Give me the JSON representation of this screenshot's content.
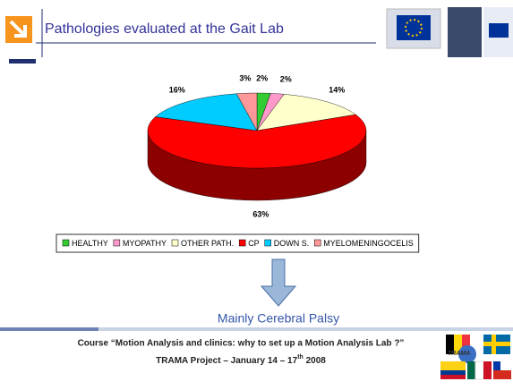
{
  "slide": {
    "title": "Pathologies evaluated at the Gait Lab",
    "conclusion": "Mainly  Cerebral Palsy",
    "footer_line1": "Course “Motion Analysis and clinics: why to set up a Motion Analysis Lab ?”",
    "footer_line2": "TRAMA Project – January 14 – 17",
    "footer_sup": "th",
    "footer_year": " 2008",
    "logo_text": "TRAMA"
  },
  "chart_data": {
    "type": "pie",
    "categories": [
      "HEALTHY",
      "MYOPATHY",
      "OTHER PATH.",
      "CP",
      "DOWN S.",
      "MYELOMENINGOCELIS"
    ],
    "values": [
      2,
      2,
      14,
      63,
      16,
      3
    ],
    "value_labels": [
      "2%",
      "2%",
      "14%",
      "63%",
      "16%",
      "3%"
    ],
    "colors": [
      "#33cc33",
      "#ff99cc",
      "#ffffcc",
      "#ff0000",
      "#00ccff",
      "#ff9999"
    ],
    "legend": "bottom"
  }
}
